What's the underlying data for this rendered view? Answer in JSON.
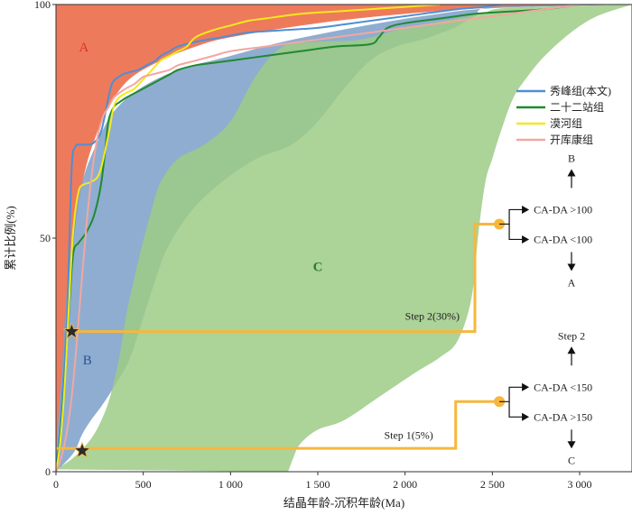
{
  "chart_data": {
    "type": "area",
    "xlabel": "结晶年龄-沉积年龄(Ma)",
    "ylabel": "累计比例(%)",
    "xlim": [
      0,
      3300
    ],
    "ylim": [
      0,
      100
    ],
    "x_ticks": [
      0,
      500,
      1000,
      1500,
      2000,
      2500,
      3000
    ],
    "x_tick_labels": [
      "0",
      "500",
      "1 000",
      "1 500",
      "2 000",
      "2 500",
      "3 000"
    ],
    "y_ticks": [
      0,
      50,
      100
    ],
    "y_tick_labels": [
      "0",
      "50",
      "100"
    ],
    "legend_position": "top-right",
    "regions": [
      {
        "label": "A",
        "color": "#ee7a5c",
        "label_pos": [
          160,
          90
        ],
        "label_color": "#d9352b",
        "upper": [
          [
            0,
            100
          ],
          [
            3300,
            100
          ]
        ],
        "lower": [
          [
            0,
            3
          ],
          [
            40,
            22
          ],
          [
            80,
            40
          ],
          [
            120,
            55
          ],
          [
            170,
            65
          ],
          [
            230,
            72
          ],
          [
            300,
            78
          ],
          [
            420,
            84
          ],
          [
            600,
            88
          ],
          [
            800,
            91
          ],
          [
            1000,
            93
          ],
          [
            1500,
            96
          ],
          [
            2000,
            98
          ],
          [
            2500,
            99.3
          ],
          [
            3300,
            100
          ]
        ]
      },
      {
        "label": "B",
        "color": "#7b9fc8",
        "label_pos": [
          180,
          23
        ],
        "label_color": "#2a4f9c",
        "upper": [
          [
            0,
            4
          ],
          [
            30,
            20
          ],
          [
            60,
            38
          ],
          [
            100,
            52
          ],
          [
            150,
            62
          ],
          [
            230,
            70
          ],
          [
            330,
            77
          ],
          [
            480,
            82
          ],
          [
            700,
            86
          ],
          [
            1000,
            89
          ],
          [
            1300,
            92
          ],
          [
            1700,
            95
          ],
          [
            2100,
            97.5
          ],
          [
            2500,
            99.2
          ],
          [
            3300,
            100
          ]
        ],
        "lower": [
          [
            0,
            0
          ],
          [
            100,
            4
          ],
          [
            150,
            8
          ],
          [
            200,
            11
          ],
          [
            260,
            14
          ],
          [
            330,
            18
          ],
          [
            420,
            24
          ],
          [
            500,
            33
          ],
          [
            560,
            40
          ],
          [
            640,
            48
          ],
          [
            780,
            56
          ],
          [
            950,
            62
          ],
          [
            1150,
            67
          ],
          [
            1350,
            70
          ],
          [
            1500,
            75
          ],
          [
            1650,
            82
          ],
          [
            1800,
            88
          ],
          [
            1950,
            91
          ],
          [
            2100,
            92.5
          ],
          [
            2280,
            95
          ],
          [
            2400,
            97.5
          ],
          [
            2520,
            99.5
          ],
          [
            3300,
            100
          ]
        ]
      },
      {
        "label": "C",
        "color": "#9dcb86",
        "label_pos": [
          1500,
          43
        ],
        "label_color": "#2d7d2a",
        "upper": [
          [
            0,
            0.5
          ],
          [
            100,
            3
          ],
          [
            200,
            7
          ],
          [
            260,
            11
          ],
          [
            310,
            16
          ],
          [
            360,
            24
          ],
          [
            400,
            33
          ],
          [
            440,
            40
          ],
          [
            490,
            48
          ],
          [
            540,
            55
          ],
          [
            600,
            62
          ],
          [
            700,
            67
          ],
          [
            850,
            70
          ],
          [
            1000,
            75
          ],
          [
            1150,
            85
          ],
          [
            1300,
            91
          ],
          [
            1500,
            92
          ],
          [
            1750,
            92.5
          ],
          [
            2000,
            95
          ],
          [
            2300,
            97
          ],
          [
            2450,
            98.2
          ],
          [
            2600,
            99.3
          ],
          [
            3300,
            100
          ]
        ],
        "lower": [
          [
            1330,
            0
          ],
          [
            1360,
            3
          ],
          [
            1400,
            6
          ],
          [
            1500,
            9
          ],
          [
            1650,
            11
          ],
          [
            1850,
            16
          ],
          [
            2050,
            21
          ],
          [
            2200,
            24.5
          ],
          [
            2300,
            28
          ],
          [
            2380,
            37
          ],
          [
            2420,
            51
          ],
          [
            2460,
            62
          ],
          [
            2500,
            67
          ],
          [
            2550,
            73
          ],
          [
            2620,
            80
          ],
          [
            2700,
            84.5
          ],
          [
            2800,
            89
          ],
          [
            2950,
            94
          ],
          [
            3100,
            97.5
          ],
          [
            3300,
            100
          ]
        ]
      }
    ],
    "series": [
      {
        "name": "秀峰组(本文)",
        "color": "#4f8fd2",
        "x": [
          0,
          20,
          40,
          60,
          70,
          90,
          110,
          140,
          180,
          220,
          260,
          300,
          320,
          340,
          360,
          380,
          420,
          470,
          520,
          570,
          600,
          650,
          700,
          800,
          950,
          1100,
          1300,
          1500,
          1700,
          1900,
          2100,
          2300,
          2450,
          2550
        ],
        "y": [
          0,
          8,
          18,
          30,
          40,
          65,
          69.5,
          70,
          70,
          70.5,
          73,
          80,
          83,
          84,
          84.5,
          85,
          85.5,
          86,
          87,
          88,
          89,
          90,
          91,
          92,
          93,
          94,
          94.5,
          95,
          96,
          97,
          98,
          99,
          99.5,
          100
        ]
      },
      {
        "name": "二十二站组",
        "color": "#1f8a2f",
        "x": [
          0,
          20,
          40,
          60,
          80,
          100,
          130,
          170,
          210,
          240,
          260,
          280,
          300,
          330,
          360,
          400,
          450,
          500,
          550,
          600,
          650,
          700,
          800,
          900,
          1000,
          1200,
          1400,
          1600,
          1800,
          1850,
          1900,
          2000,
          2200,
          2400,
          2600,
          2800,
          3000
        ],
        "y": [
          0,
          6,
          14,
          25,
          38,
          47,
          49,
          51,
          54,
          58,
          62,
          68,
          75,
          78,
          79,
          80,
          81,
          82,
          83,
          84,
          85,
          86,
          87,
          87.5,
          88,
          89,
          90,
          91,
          91.5,
          93,
          95,
          96,
          97,
          98,
          98.5,
          99,
          100
        ]
      },
      {
        "name": "漠河组",
        "color": "#f2ea1d",
        "x": [
          0,
          20,
          40,
          60,
          80,
          100,
          130,
          160,
          200,
          250,
          300,
          330,
          360,
          400,
          450,
          500,
          550,
          600,
          650,
          700,
          750,
          800,
          900,
          1000,
          1100,
          1200,
          1400,
          1600,
          1800,
          2000,
          2200
        ],
        "y": [
          0,
          5,
          13,
          25,
          40,
          52,
          60,
          61.5,
          62,
          64,
          72,
          78,
          80,
          81,
          82,
          84,
          86,
          88,
          89,
          90,
          91,
          93,
          94.5,
          95.5,
          96.5,
          97,
          98,
          98.5,
          99,
          99.5,
          100
        ]
      },
      {
        "name": "开库康组",
        "color": "#f2a7a0",
        "x": [
          0,
          30,
          60,
          90,
          120,
          150,
          180,
          210,
          240,
          270,
          300,
          330,
          360,
          400,
          450,
          500,
          550,
          600,
          650,
          700,
          800,
          900,
          1000,
          1200,
          1400,
          1600,
          1800,
          2000,
          2200,
          2400,
          2600,
          2800,
          3000
        ],
        "y": [
          0,
          3,
          8,
          16,
          28,
          42,
          55,
          65,
          72,
          76,
          78,
          80,
          81,
          82,
          83,
          84.5,
          85,
          85.5,
          86,
          87,
          88,
          89,
          90,
          91,
          92,
          93,
          94,
          95,
          96,
          97,
          98,
          99,
          100
        ]
      }
    ],
    "annotations": [
      {
        "type": "step",
        "label": "Step 2(30%)",
        "points": [
          [
            60,
            30
          ],
          [
            2400,
            30
          ],
          [
            2400,
            53
          ],
          [
            2540,
            53
          ]
        ],
        "star": [
          90,
          30
        ],
        "node": [
          2540,
          53
        ],
        "label_pos": [
          2000,
          32.5
        ]
      },
      {
        "type": "step",
        "label": "Step 1(5%)",
        "points": [
          [
            0,
            5
          ],
          [
            2290,
            5
          ],
          [
            2290,
            15
          ],
          [
            2540,
            15
          ]
        ],
        "star": [
          150,
          4.5
        ],
        "node": [
          2540,
          15
        ],
        "label_pos": [
          1880,
          7
        ]
      }
    ],
    "decision_labels": {
      "upper_branch": "CA-DA >100",
      "lower_branch": "CA-DA <100",
      "upper_result": "B",
      "lower_result": "A",
      "upper_branch_2": "CA-DA <150",
      "lower_branch_2": "CA-DA >150",
      "upper_result_2": "Step 2",
      "lower_result_2": "C"
    },
    "step_color": "#f6b73c"
  }
}
